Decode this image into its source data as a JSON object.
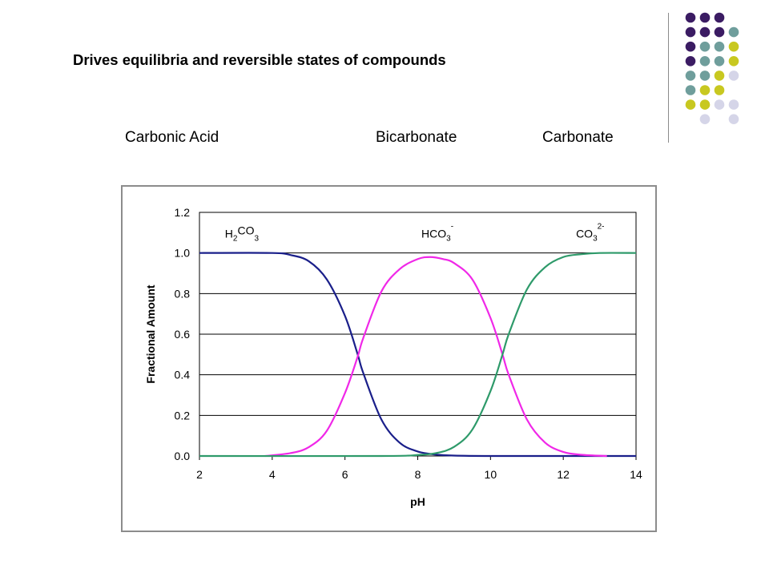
{
  "slide": {
    "title": "Drives equilibria and reversible states of compounds",
    "species_labels": [
      "Carbonic Acid",
      "Bicarbonate",
      "Carbonate"
    ]
  },
  "theme": {
    "dot_colors": {
      "purple": "#3b1c63",
      "teal": "#6f9e9c",
      "olive": "#c8c820",
      "lavender": "#d5d5e8"
    },
    "dot_grid": [
      [
        "purple",
        "purple",
        "purple",
        null
      ],
      [
        "purple",
        "purple",
        "purple",
        "teal"
      ],
      [
        "purple",
        "teal",
        "teal",
        "olive"
      ],
      [
        "purple",
        "teal",
        "teal",
        "olive"
      ],
      [
        "teal",
        "teal",
        "olive",
        "lavender"
      ],
      [
        "teal",
        "olive",
        "olive",
        null
      ],
      [
        "olive",
        "olive",
        "lavender",
        "lavender"
      ],
      [
        null,
        "lavender",
        null,
        "lavender"
      ]
    ]
  },
  "chart_data": {
    "type": "line",
    "xlabel": "pH",
    "ylabel": "Fractional Amount",
    "xlim": [
      2,
      14
    ],
    "ylim": [
      0,
      1.2
    ],
    "xticks": [
      "2",
      "4",
      "6",
      "8",
      "10",
      "12",
      "14"
    ],
    "yticks": [
      "0.0",
      "0.2",
      "0.4",
      "0.6",
      "0.8",
      "1.0",
      "1.2"
    ],
    "grid": "horizontal",
    "pK": [
      6.35,
      10.33
    ],
    "series": [
      {
        "name": "H2CO3",
        "color": "#1a1f8a",
        "x": [
          2,
          4,
          4.5,
          5,
          5.5,
          6,
          6.35,
          6.5,
          7,
          7.5,
          8,
          8.5,
          9,
          10,
          12,
          14
        ],
        "y": [
          1.0,
          1.0,
          0.99,
          0.96,
          0.87,
          0.69,
          0.5,
          0.41,
          0.18,
          0.066,
          0.022,
          0.007,
          0.002,
          0,
          0,
          0
        ]
      },
      {
        "name": "HCO3-",
        "color": "#f028e8",
        "x": [
          3.8,
          4.5,
          5,
          5.5,
          6,
          6.35,
          6.5,
          7,
          7.5,
          8,
          8.34,
          8.7,
          9,
          9.5,
          10,
          10.33,
          10.5,
          11,
          11.5,
          12,
          12.5,
          13.2
        ],
        "y": [
          0,
          0.014,
          0.043,
          0.124,
          0.31,
          0.49,
          0.58,
          0.81,
          0.92,
          0.97,
          0.98,
          0.97,
          0.95,
          0.87,
          0.68,
          0.5,
          0.4,
          0.18,
          0.066,
          0.02,
          0.006,
          0
        ]
      },
      {
        "name": "CO3 2-",
        "color": "#2e9a6a",
        "x": [
          2,
          7,
          8,
          8.5,
          9,
          9.5,
          10,
          10.33,
          10.5,
          11,
          11.5,
          12,
          12.5,
          13,
          14
        ],
        "y": [
          0,
          0,
          0.005,
          0.014,
          0.045,
          0.13,
          0.32,
          0.5,
          0.6,
          0.82,
          0.93,
          0.98,
          0.994,
          1.0,
          1.0
        ]
      }
    ],
    "annotations": [
      {
        "base": "H",
        "sub1": "2",
        "mid": "CO",
        "sub2": "3",
        "sup": "",
        "x": 2.7,
        "y": 1.095
      },
      {
        "base": "HCO",
        "sub1": "",
        "mid": "",
        "sub2": "3",
        "sup": "-",
        "x": 8.1,
        "y": 1.095
      },
      {
        "base": "CO",
        "sub1": "",
        "mid": "",
        "sub2": "3",
        "sup": "2-",
        "x": 12.35,
        "y": 1.095
      }
    ]
  }
}
